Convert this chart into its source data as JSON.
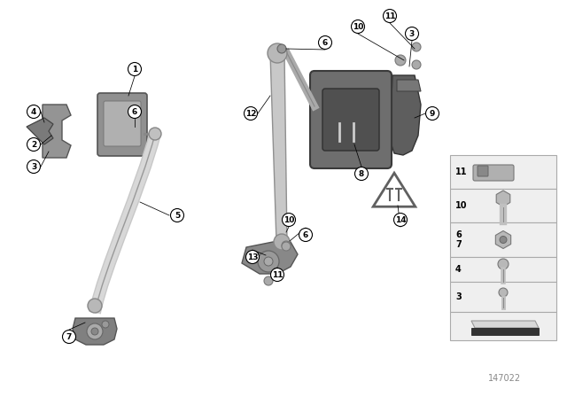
{
  "bg_color": "#ffffff",
  "fig_width": 6.4,
  "fig_height": 4.48,
  "dpi": 100,
  "watermark": "147022",
  "lc": "#000000",
  "gray1": "#888888",
  "gray2": "#aaaaaa",
  "gray3": "#666666",
  "gray4": "#c8c8c8",
  "gray5": "#707070",
  "gray6": "#555555",
  "graydark": "#444444",
  "graylight": "#d0d0d0",
  "graybg": "#f2f2f2"
}
